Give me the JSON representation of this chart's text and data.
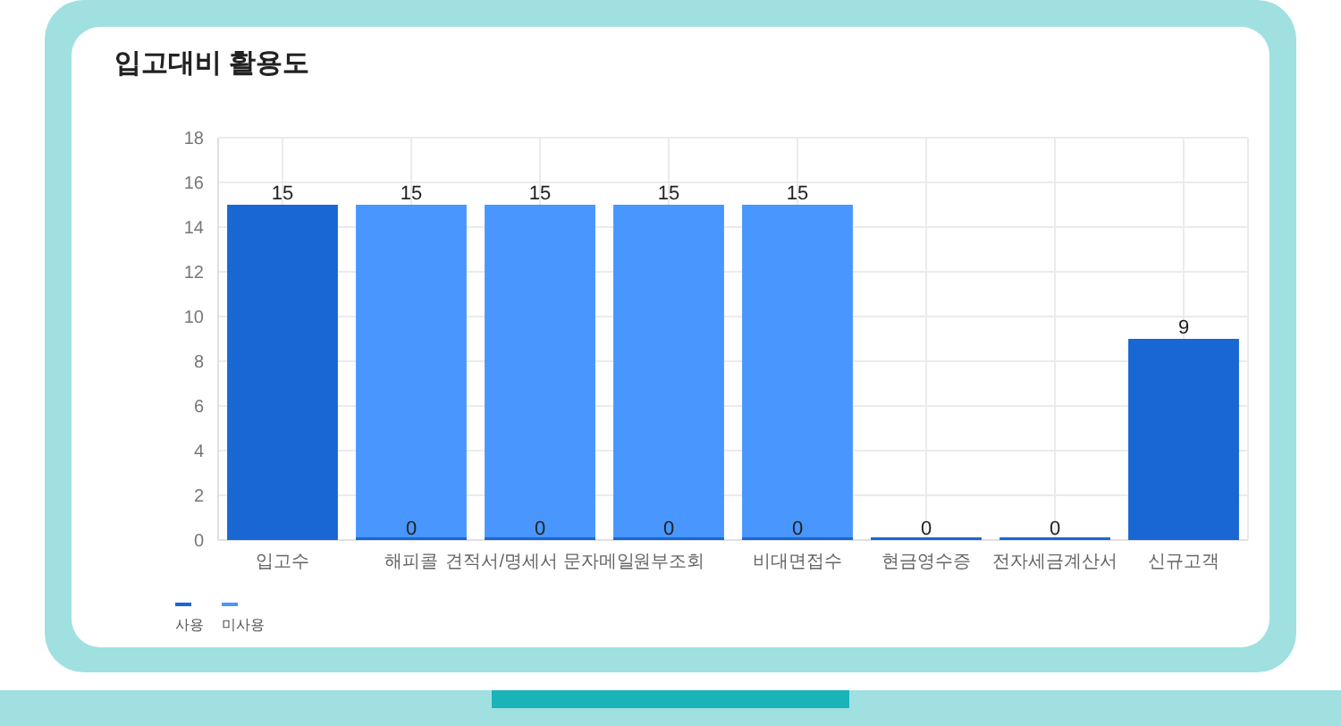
{
  "chart_data": {
    "type": "bar",
    "title": "입고대비 활용도",
    "stacked": true,
    "grid": true,
    "legend": "bottom left",
    "categories": [
      "입고수",
      "해피콜",
      "견적서/명세서 문자메일",
      "원부조회",
      "비대면접수",
      "현금영수증",
      "전자세금계산서",
      "신규고객"
    ],
    "ylim": [
      0,
      18
    ],
    "yticks": [
      0,
      2,
      4,
      6,
      8,
      10,
      12,
      14,
      16,
      18
    ],
    "series": [
      {
        "name": "사용",
        "color": "#1967d2",
        "values": [
          15,
          0,
          0,
          0,
          0,
          0,
          0,
          9
        ],
        "value_labels": [
          "15",
          "0",
          "0",
          "0",
          "0",
          "0",
          "0",
          "9"
        ]
      },
      {
        "name": "미사용",
        "color": "#4896fe",
        "values": [
          null,
          15,
          15,
          15,
          15,
          null,
          null,
          null
        ],
        "value_labels": [
          null,
          "15",
          "15",
          "15",
          "15",
          null,
          null,
          null
        ]
      }
    ]
  }
}
